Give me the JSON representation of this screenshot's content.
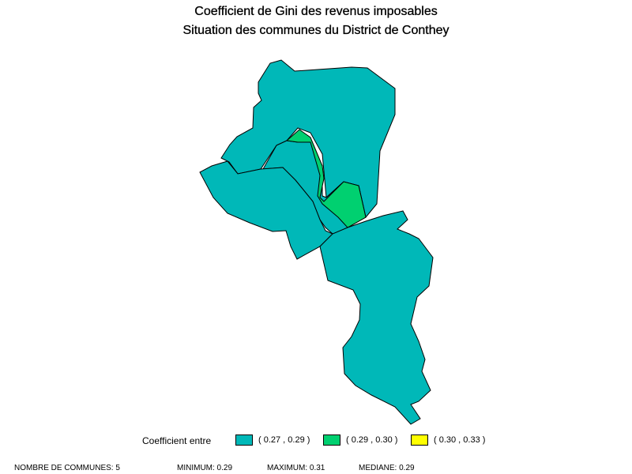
{
  "title_line1": "Coefficient de Gini des revenus imposables",
  "title_line2": "Situation des communes du District de Conthey",
  "legend": {
    "label": "Coefficient entre",
    "classes": [
      {
        "range": "( 0.27 , 0.29 )",
        "color": "#00B8B8"
      },
      {
        "range": "( 0.29 , 0.30 )",
        "color": "#00D070"
      },
      {
        "range": "( 0.30 , 0.33 )",
        "color": "#FFFF00"
      }
    ]
  },
  "footer": {
    "count": "NOMBRE DE COMMUNES: 5",
    "minimum": "MINIMUM: 0.29",
    "maximum": "MAXIMUM: 0.31",
    "median": "MEDIANE: 0.29"
  },
  "regions": [
    {
      "id": "north-teal",
      "class": 0
    },
    {
      "id": "middle-teal",
      "class": 0
    },
    {
      "id": "west-green",
      "class": 1
    },
    {
      "id": "yellow-strip",
      "class": 2
    },
    {
      "id": "south-teal",
      "class": 0
    }
  ]
}
